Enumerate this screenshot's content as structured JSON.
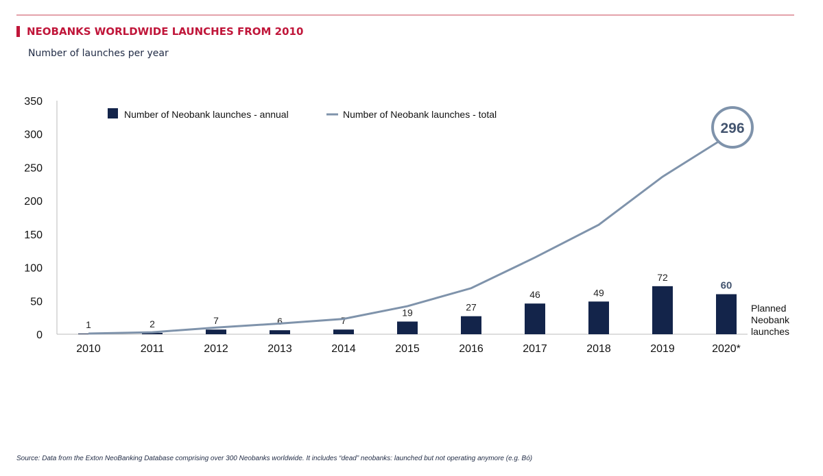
{
  "header": {
    "title": "NEOBANKS WORLDWIDE LAUNCHES FROM 2010",
    "subtitle": "Number of launches per year"
  },
  "footer": {
    "source": "Source: Data from the Exton NeoBanking Database comprising over 300 Neobanks worldwide. It includes “dead” neobanks: launched but not operating anymore (e.g. Bó)"
  },
  "colors": {
    "accent": "#c0163a",
    "bar": "#13244a",
    "line": "#7f93ab"
  },
  "chart_data": {
    "type": "bar+line",
    "categories": [
      "2010",
      "2011",
      "2012",
      "2013",
      "2014",
      "2015",
      "2016",
      "2017",
      "2018",
      "2019",
      "2020*"
    ],
    "series": [
      {
        "name": "Number of Neobank launches - annual",
        "type": "bar",
        "values": [
          1,
          2,
          7,
          6,
          7,
          19,
          27,
          46,
          49,
          72,
          60
        ]
      },
      {
        "name": "Number of Neobank launches - total",
        "type": "line",
        "values": [
          1,
          3,
          10,
          16,
          23,
          42,
          69,
          115,
          164,
          236,
          296
        ]
      }
    ],
    "ylim": [
      0,
      350
    ],
    "yticks": [
      0,
      50,
      100,
      150,
      200,
      250,
      300,
      350
    ],
    "legend": "top",
    "annotations": {
      "total_callout": "296",
      "planned_note": [
        "Planned",
        "Neobank",
        "launches"
      ]
    }
  }
}
